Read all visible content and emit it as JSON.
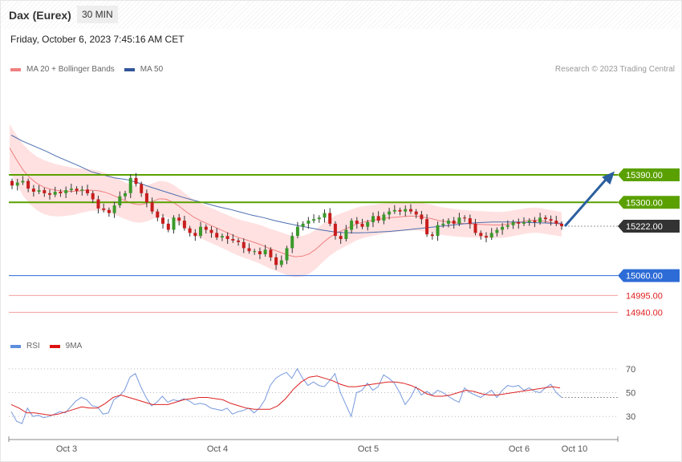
{
  "header": {
    "instrument": "Dax (Eurex)",
    "interval": "30 MIN",
    "datetime": "Friday, October 6, 2023 7:45:16 AM CET",
    "copyright": "Research © 2023 Trading Central"
  },
  "colors": {
    "support": "#2d6bd6",
    "resistance": "#5aa000",
    "target_low": "#e02020",
    "target_line": "#f3a0a0",
    "current": "#333333",
    "candle_up": "#3a9a2a",
    "candle_down": "#c81d1d",
    "band_fill": "#ffd7d7",
    "ma20": "#f08080",
    "ma50": "#4a6fb0",
    "rsi": "#7799dd",
    "rsi_ma": "#dd2222",
    "arrow": "#2b5f9e"
  },
  "price_legend": [
    {
      "label": "MA 20 + Bollinger Bands",
      "color": "#f08080"
    },
    {
      "label": "MA 50",
      "color": "#33559a"
    }
  ],
  "rsi_legend": [
    {
      "label": "RSI",
      "color": "#5d8fdd"
    },
    {
      "label": "9MA",
      "color": "#dd1111"
    }
  ],
  "chart_data": [
    {
      "type": "candlestick",
      "title": "",
      "x_tick_labels": [
        "Oct 3",
        "Oct 4",
        "Oct 5",
        "Oct 6",
        "Oct 10"
      ],
      "ylim": [
        14870,
        15700
      ],
      "levels": [
        {
          "value": 15390.0,
          "label": "15390.00",
          "kind": "resistance"
        },
        {
          "value": 15300.0,
          "label": "15300.00",
          "kind": "resistance"
        },
        {
          "value": 15222.0,
          "label": "15222.00",
          "kind": "current"
        },
        {
          "value": 15060.0,
          "label": "15060.00",
          "kind": "support"
        },
        {
          "value": 14995.0,
          "label": "14995.00",
          "kind": "target"
        },
        {
          "value": 14940.0,
          "label": "14940.00",
          "kind": "target"
        }
      ],
      "forecast_arrow": {
        "from": 15222,
        "to": 15390
      },
      "closes": [
        15355,
        15365,
        15370,
        15345,
        15335,
        15340,
        15330,
        15325,
        15335,
        15330,
        15340,
        15345,
        15338,
        15342,
        15330,
        15310,
        15280,
        15275,
        15265,
        15290,
        15320,
        15330,
        15380,
        15360,
        15330,
        15300,
        15270,
        15250,
        15230,
        15210,
        15250,
        15240,
        15215,
        15200,
        15190,
        15220,
        15210,
        15200,
        15185,
        15190,
        15180,
        15175,
        15170,
        15150,
        15140,
        15140,
        15130,
        15145,
        15120,
        15095,
        15110,
        15150,
        15190,
        15220,
        15230,
        15240,
        15245,
        15250,
        15265,
        15230,
        15190,
        15180,
        15210,
        15240,
        15230,
        15220,
        15235,
        15255,
        15240,
        15260,
        15270,
        15275,
        15270,
        15278,
        15270,
        15260,
        15245,
        15195,
        15190,
        15225,
        15230,
        15240,
        15230,
        15250,
        15248,
        15230,
        15200,
        15190,
        15185,
        15200,
        15210,
        15220,
        15225,
        15235,
        15230,
        15235,
        15240,
        15235,
        15250,
        15245,
        15240,
        15230,
        15222
      ],
      "ma20": [
        15478,
        15440,
        15405,
        15380,
        15362,
        15350,
        15343,
        15339,
        15337,
        15336,
        15337,
        15339,
        15340,
        15338,
        15333,
        15325,
        15315,
        15305,
        15296,
        15292,
        15296,
        15304,
        15312,
        15310,
        15300,
        15285,
        15268,
        15252,
        15240,
        15230,
        15220,
        15210,
        15200,
        15190,
        15182,
        15175,
        15168,
        15160,
        15150,
        15142,
        15134,
        15126,
        15122,
        15124,
        15132,
        15148,
        15168,
        15186,
        15200,
        15210,
        15220,
        15230,
        15236,
        15240,
        15244,
        15248,
        15250,
        15252,
        15254,
        15255,
        15254,
        15250,
        15246,
        15240,
        15237,
        15234,
        15232,
        15230,
        15229,
        15228,
        15227,
        15226,
        15226,
        15228,
        15232,
        15236,
        15240,
        15242,
        15240,
        15236,
        15232,
        15228
      ],
      "ma50": [
        15520,
        15500,
        15484,
        15468,
        15450,
        15434,
        15418,
        15400,
        15390,
        15380,
        15375,
        15365,
        15352,
        15340,
        15328,
        15316,
        15306,
        15296,
        15286,
        15278,
        15268,
        15258,
        15250,
        15240,
        15232,
        15224,
        15217,
        15210,
        15204,
        15201,
        15200,
        15201,
        15203,
        15205,
        15208,
        15212,
        15216,
        15220,
        15224,
        15228,
        15232,
        15234,
        15236,
        15236,
        15236,
        15234,
        15233,
        15232,
        15232
      ]
    },
    {
      "type": "line",
      "title": "",
      "y_ticks": [
        70,
        50,
        30
      ],
      "ylim": [
        16,
        80
      ],
      "series": [
        {
          "name": "RSI",
          "values": [
            34,
            26,
            24,
            37,
            30,
            31,
            29,
            30,
            32,
            34,
            33,
            38,
            43,
            46,
            44,
            39,
            38,
            32,
            33,
            44,
            47,
            52,
            63,
            66,
            55,
            46,
            39,
            42,
            47,
            42,
            44,
            43,
            45,
            43,
            40,
            41,
            40,
            37,
            36,
            35,
            37,
            32,
            34,
            35,
            37,
            33,
            37,
            44,
            56,
            62,
            65,
            67,
            62,
            70,
            62,
            56,
            59,
            56,
            55,
            60,
            66,
            50,
            40,
            30,
            50,
            52,
            58,
            52,
            55,
            65,
            62,
            58,
            50,
            40,
            46,
            55,
            48,
            51,
            48,
            52,
            50,
            47,
            44,
            42,
            54,
            50,
            48,
            46,
            49,
            52,
            46,
            52,
            56,
            55,
            56,
            52,
            54,
            51,
            50,
            54,
            57,
            50,
            46
          ]
        },
        {
          "name": "9MA",
          "values": [
            40,
            37,
            33,
            33,
            32,
            31,
            32,
            34,
            36,
            38,
            37,
            37,
            41,
            46,
            48,
            46,
            44,
            42,
            40,
            40,
            40,
            42,
            44,
            45,
            46,
            46,
            45,
            44,
            41,
            39,
            37,
            36,
            36,
            36,
            39,
            45,
            53,
            59,
            63,
            64,
            62,
            60,
            57,
            55,
            55,
            56,
            57,
            58,
            59,
            59,
            58,
            56,
            53,
            49,
            47,
            47,
            48,
            50,
            52,
            51,
            49,
            48,
            48,
            49,
            50,
            51,
            52,
            53,
            54,
            55,
            54
          ]
        }
      ]
    }
  ]
}
